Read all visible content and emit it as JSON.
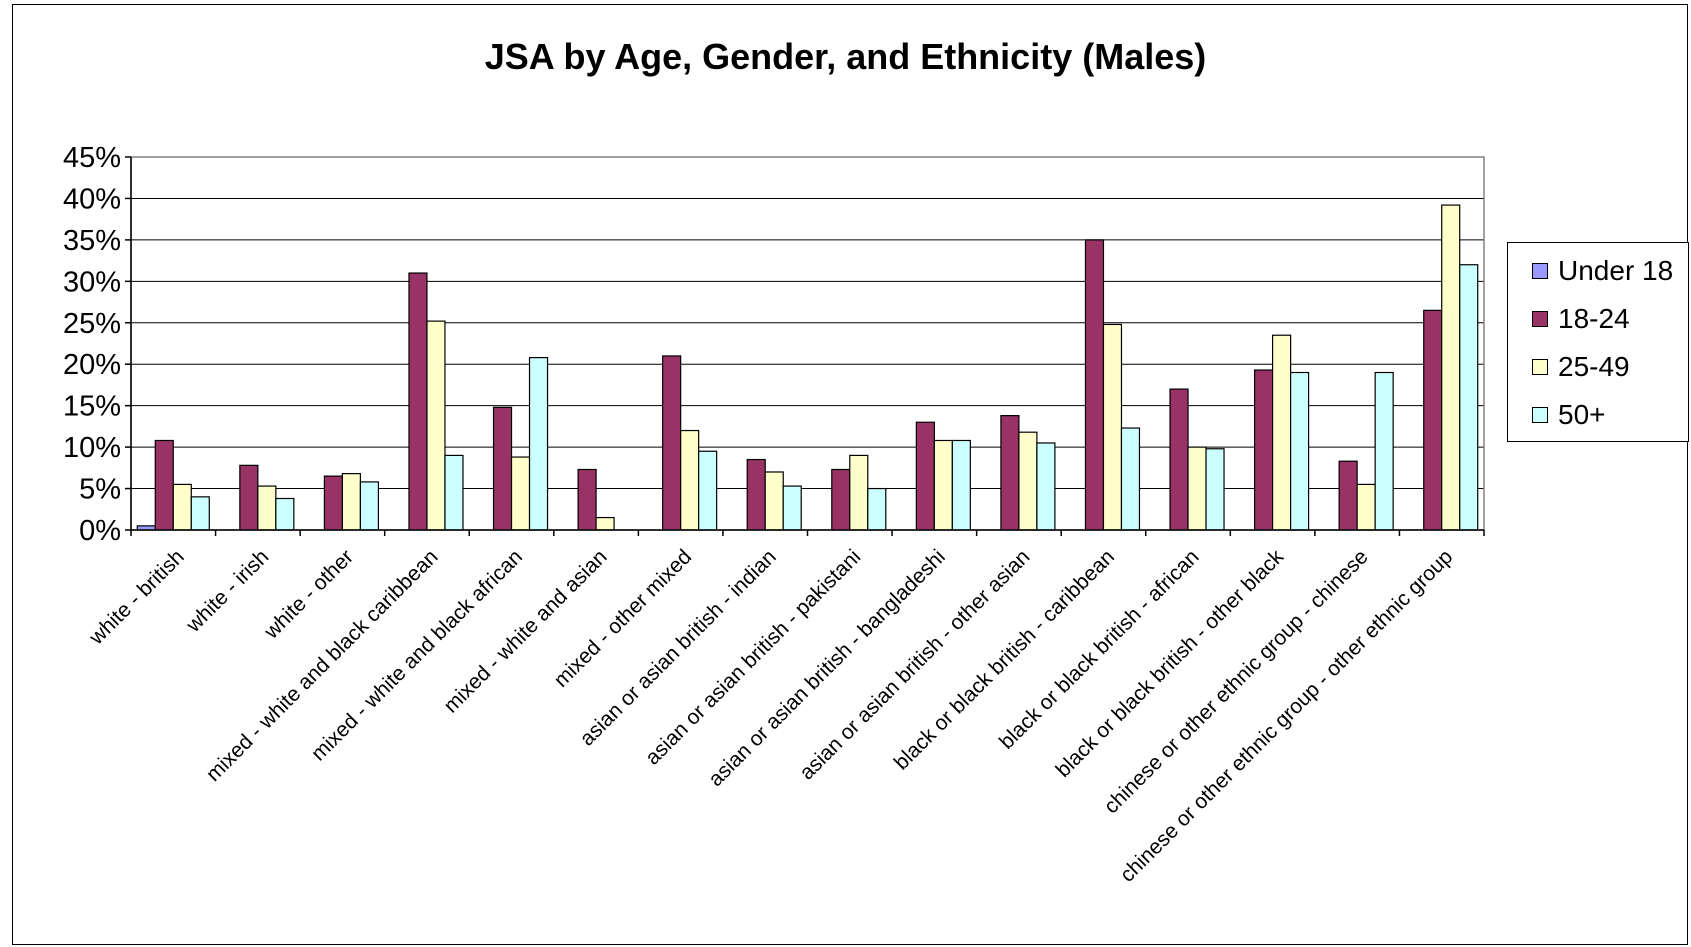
{
  "chart_data": {
    "type": "bar",
    "title": "JSA by Age, Gender, and Ethnicity (Males)",
    "ylim": [
      0,
      45
    ],
    "y_ticks": [
      "0%",
      "5%",
      "10%",
      "15%",
      "20%",
      "25%",
      "30%",
      "35%",
      "40%",
      "45%"
    ],
    "grid": "horizontal",
    "legend_position": "right",
    "categories": [
      "white - british",
      "white - irish",
      "white - other",
      "mixed - white and black caribbean",
      "mixed - white and black african",
      "mixed - white and asian",
      "mixed - other mixed",
      "asian or asian british - indian",
      "asian or asian british - pakistani",
      "asian or asian british - bangladeshi",
      "asian or asian british - other asian",
      "black or black british - caribbean",
      "black or black british - african",
      "black or black british - other black",
      "chinese or other ethnic group - chinese",
      "chinese or other ethnic group - other ethnic group"
    ],
    "series": [
      {
        "name": "Under 18",
        "color": "#9999ff",
        "values": [
          0.5,
          0,
          0,
          0,
          0,
          0,
          0,
          0,
          0,
          0,
          0,
          0,
          0,
          0,
          0,
          0
        ]
      },
      {
        "name": "18-24",
        "color": "#993366",
        "values": [
          10.8,
          7.8,
          6.5,
          31.0,
          14.8,
          7.3,
          21.0,
          8.5,
          7.3,
          13.0,
          13.8,
          35.0,
          17.0,
          19.3,
          8.3,
          26.5
        ]
      },
      {
        "name": "25-49",
        "color": "#ffffcc",
        "values": [
          5.5,
          5.3,
          6.8,
          25.2,
          8.8,
          1.5,
          12.0,
          7.0,
          9.0,
          10.8,
          11.8,
          24.8,
          10.0,
          23.5,
          5.5,
          39.2
        ]
      },
      {
        "name": "50+",
        "color": "#ccffff",
        "values": [
          4.0,
          3.8,
          5.8,
          9.0,
          20.8,
          0,
          9.5,
          5.3,
          5.0,
          10.8,
          10.5,
          12.3,
          9.8,
          19.0,
          19.0,
          32.0
        ]
      }
    ]
  }
}
